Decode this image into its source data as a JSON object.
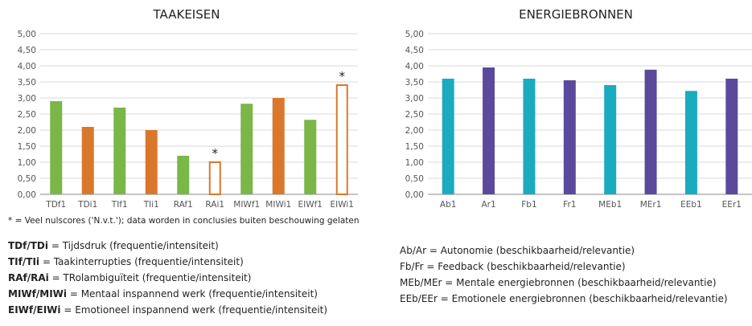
{
  "colors": {
    "green": "#7ab648",
    "orange": "#d9782d",
    "teal": "#1aabbf",
    "purple": "#5b4a9b",
    "axis": "#8a8a8a",
    "grid": "#d9d9d9",
    "label": "#555555"
  },
  "chart_data": [
    {
      "type": "bar",
      "title": "TAAKEISEN",
      "categories": [
        "TDf1",
        "TDi1",
        "TIf1",
        "TIi1",
        "RAf1",
        "RAi1",
        "MIWf1",
        "MIWi1",
        "EIWf1",
        "EIWi1"
      ],
      "values": [
        2.9,
        2.1,
        2.7,
        2.0,
        1.2,
        1.0,
        2.82,
        3.0,
        2.32,
        3.4
      ],
      "colors": [
        "green",
        "orange",
        "green",
        "orange",
        "green",
        "orange",
        "green",
        "orange",
        "green",
        "orange"
      ],
      "hollow": [
        false,
        false,
        false,
        false,
        false,
        true,
        false,
        false,
        false,
        true
      ],
      "markers": [
        "",
        "",
        "",
        "",
        "",
        "*",
        "",
        "",
        "",
        "*"
      ],
      "yticks": [
        "0,00",
        "0,50",
        "1,00",
        "1,50",
        "2,00",
        "2,50",
        "3,00",
        "3,50",
        "4,00",
        "4,50",
        "5,00"
      ],
      "ylim": [
        0,
        5
      ],
      "grid": true,
      "footnote": "* = Veel nulscores ('N.v.t.'); data worden in conclusies buiten beschouwing gelaten"
    },
    {
      "type": "bar",
      "title": "ENERGIEBRONNEN",
      "categories": [
        "Ab1",
        "Ar1",
        "Fb1",
        "Fr1",
        "MEb1",
        "MEr1",
        "EEb1",
        "EEr1"
      ],
      "values": [
        3.6,
        3.95,
        3.6,
        3.55,
        3.4,
        3.88,
        3.22,
        3.6
      ],
      "colors": [
        "teal",
        "purple",
        "teal",
        "purple",
        "teal",
        "purple",
        "teal",
        "purple"
      ],
      "yticks": [
        "0,00",
        "0,50",
        "1,00",
        "1,50",
        "2,00",
        "2,50",
        "3,00",
        "3,50",
        "4,00",
        "4,50",
        "5,00"
      ],
      "ylim": [
        0,
        5
      ],
      "grid": true
    }
  ],
  "legend_left": [
    {
      "abbr": "TDf/TDi",
      "text": " = Tijdsdruk (frequentie/intensiteit)"
    },
    {
      "abbr": "TIf/TIi",
      "text": " = Taakinterrupties (frequentie/intensiteit)"
    },
    {
      "abbr": "RAf/RAi",
      "text": " = TRolambiguïteit (frequentie/intensiteit)"
    },
    {
      "abbr": "MIWf/MIWi",
      "text": " = Mentaal inspannend werk (frequentie/intensiteit)"
    },
    {
      "abbr": "EIWf/EIWi",
      "text": " = Emotioneel inspannend werk (frequentie/intensiteit)"
    }
  ],
  "legend_right": [
    "Ab/Ar = Autonomie (beschikbaarheid/relevantie)",
    "Fb/Fr = Feedback (beschikbaarheid/relevantie)",
    "MEb/MEr = Mentale energiebronnen (beschikbaarheid/relevantie)",
    "EEb/EEr = Emotionele energiebronnen (beschikbaarheid/relevantie)"
  ]
}
